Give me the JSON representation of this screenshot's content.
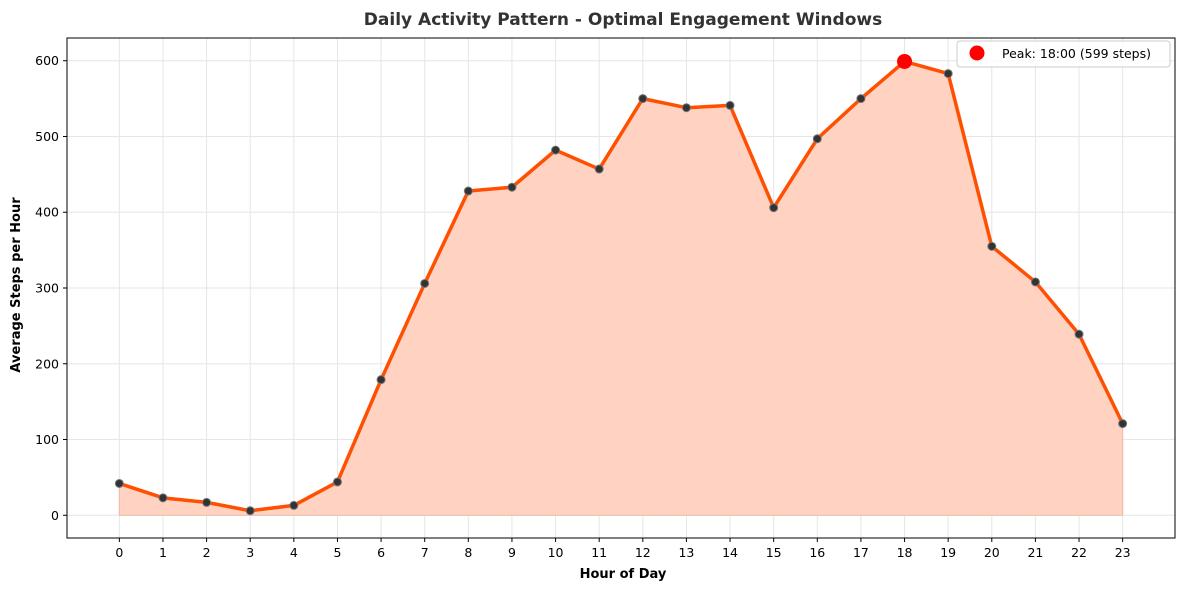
{
  "chart_data": {
    "type": "line",
    "title": "Daily Activity Pattern - Optimal Engagement Windows",
    "xlabel": "Hour of Day",
    "ylabel": "Average Steps per Hour",
    "x": [
      0,
      1,
      2,
      3,
      4,
      5,
      6,
      7,
      8,
      9,
      10,
      11,
      12,
      13,
      14,
      15,
      16,
      17,
      18,
      19,
      20,
      21,
      22,
      23
    ],
    "y": [
      42,
      23,
      17,
      6,
      13,
      44,
      179,
      306,
      428,
      433,
      482,
      457,
      550,
      538,
      541,
      406,
      497,
      550,
      599,
      583,
      355,
      308,
      239,
      121
    ],
    "xlim": [
      -1.2,
      24.2
    ],
    "ylim": [
      -30,
      630
    ],
    "yticks": [
      0,
      100,
      200,
      300,
      400,
      500,
      600
    ],
    "grid": true,
    "fill_under": true,
    "legend": {
      "placement": "top-right",
      "entries": [
        {
          "label": "Peak: 18:00 (599 steps)"
        }
      ]
    },
    "peak": {
      "x": 18,
      "y": 599
    },
    "colors": {
      "line": "#ff4f00",
      "fill": "#ffd2c2",
      "marker": "#333333",
      "peak_marker": "#ff0000",
      "grid": "#e6e6e6"
    }
  }
}
